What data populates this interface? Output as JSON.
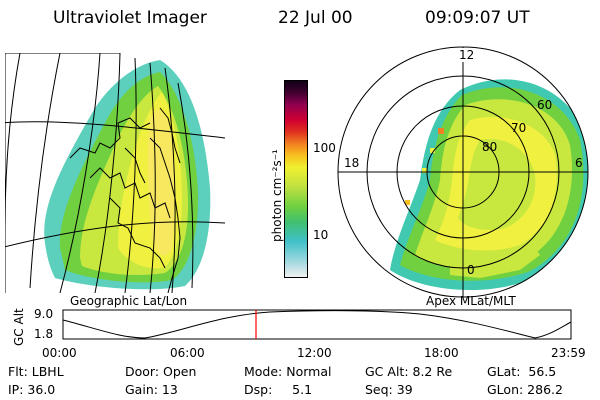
{
  "header": {
    "title": "Ultraviolet Imager",
    "date": "22 Jul 00",
    "time": "09:09:07 UT"
  },
  "colorbar": {
    "unit_label": "photon cm⁻²s⁻¹",
    "ticks": [
      "100",
      "10"
    ],
    "colors": [
      "#f0f0f0",
      "#a0d8e0",
      "#40c0c8",
      "#40c070",
      "#70d040",
      "#c0e040",
      "#f0f030",
      "#f8c020",
      "#f08020",
      "#e03020",
      "#d00030",
      "#900050",
      "#400030",
      "#100018"
    ]
  },
  "left_map": {
    "caption": "Geographic Lat/Lon"
  },
  "right_map": {
    "caption": "Apex MLat/MLT",
    "lat_labels": [
      "60",
      "70",
      "80"
    ],
    "mlt_labels": {
      "top": "12",
      "left": "18",
      "right": "6",
      "bottom": "0"
    }
  },
  "altitude_plot": {
    "ylabel": "GC Alt",
    "ymax": "9.0",
    "ymin": "1.8",
    "time_labels": [
      "00:00",
      "06:00",
      "12:00",
      "18:00",
      "23:59"
    ],
    "marker_time": "09:09"
  },
  "info": {
    "flt": "Flt: LBHL",
    "door": "Door: Open",
    "mode": "Mode: Normal",
    "gcalt": "GC Alt: 8.2 Re",
    "glat": "GLat:  56.5",
    "ip": "IP: 36.0",
    "gain": "Gain: 13",
    "dsp": "Dsp:     5.1",
    "seq": "Seq: 39",
    "glon": "GLon: 286.2"
  }
}
